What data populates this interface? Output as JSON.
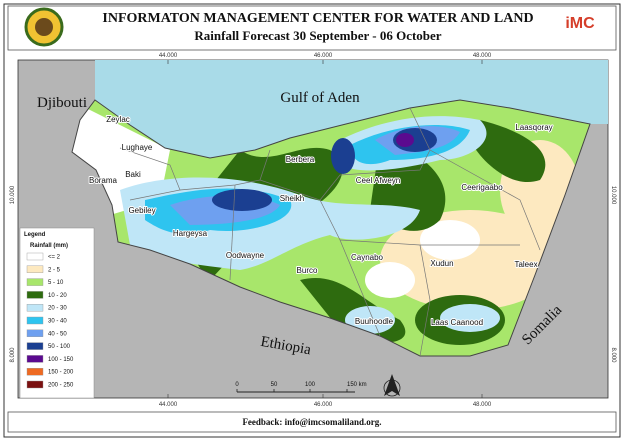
{
  "header": {
    "title": "INFORMATON MANAGEMENT CENTER FOR WATER AND LAND",
    "subtitle": "Rainfall Forecast 30 September - 06 October",
    "logo_text": "iMC"
  },
  "map": {
    "graticule": {
      "top": [
        "44.000",
        "46.000",
        "48.000"
      ],
      "bottom": [
        "44.000",
        "46.000",
        "48.000"
      ],
      "left": [
        "10.000",
        "8.000"
      ],
      "right": [
        "10.000",
        "8.000"
      ]
    },
    "places": [
      {
        "label": "Djibouti"
      },
      {
        "label": "Gulf of Aden"
      },
      {
        "label": "Zeylac"
      },
      {
        "label": "Lughaye"
      },
      {
        "label": "Borama"
      },
      {
        "label": "Baki"
      },
      {
        "label": "Gebiley"
      },
      {
        "label": "Hargeysa"
      },
      {
        "label": "Berbera"
      },
      {
        "label": "Sheikh"
      },
      {
        "label": "Ceel Afweyn"
      },
      {
        "label": "Ceerigaabo"
      },
      {
        "label": "Laasqoray"
      },
      {
        "label": "Oodwayne"
      },
      {
        "label": "Burco"
      },
      {
        "label": "Caynabo"
      },
      {
        "label": "Xudun"
      },
      {
        "label": "Taleex"
      },
      {
        "label": "Buuhoodle"
      },
      {
        "label": "Laas Caanood"
      },
      {
        "label": "Ethiopia"
      },
      {
        "label": "Somalia"
      }
    ],
    "legend": {
      "title": "Legend",
      "subtitle": "Rainfall (mm)",
      "items": [
        {
          "label": "<= 2",
          "color": "#ffffff"
        },
        {
          "label": "2 - 5",
          "color": "#fde9c0"
        },
        {
          "label": "5 - 10",
          "color": "#a8e66b"
        },
        {
          "label": "10 - 20",
          "color": "#2e6b0f"
        },
        {
          "label": "20 - 30",
          "color": "#bfe6f7"
        },
        {
          "label": "30 - 40",
          "color": "#2ec4ef"
        },
        {
          "label": "40 - 50",
          "color": "#6ea0f0"
        },
        {
          "label": "50 - 100",
          "color": "#1b3f91"
        },
        {
          "label": "100 - 150",
          "color": "#5b0a8f"
        },
        {
          "label": "150 - 200",
          "color": "#ee6a22"
        },
        {
          "label": "200 - 250",
          "color": "#7a1010"
        }
      ]
    },
    "scale_bar": {
      "ticks": [
        "0",
        "50",
        "100",
        "150 km"
      ]
    }
  },
  "footer": "Feedback: info@imcsomaliland.org."
}
